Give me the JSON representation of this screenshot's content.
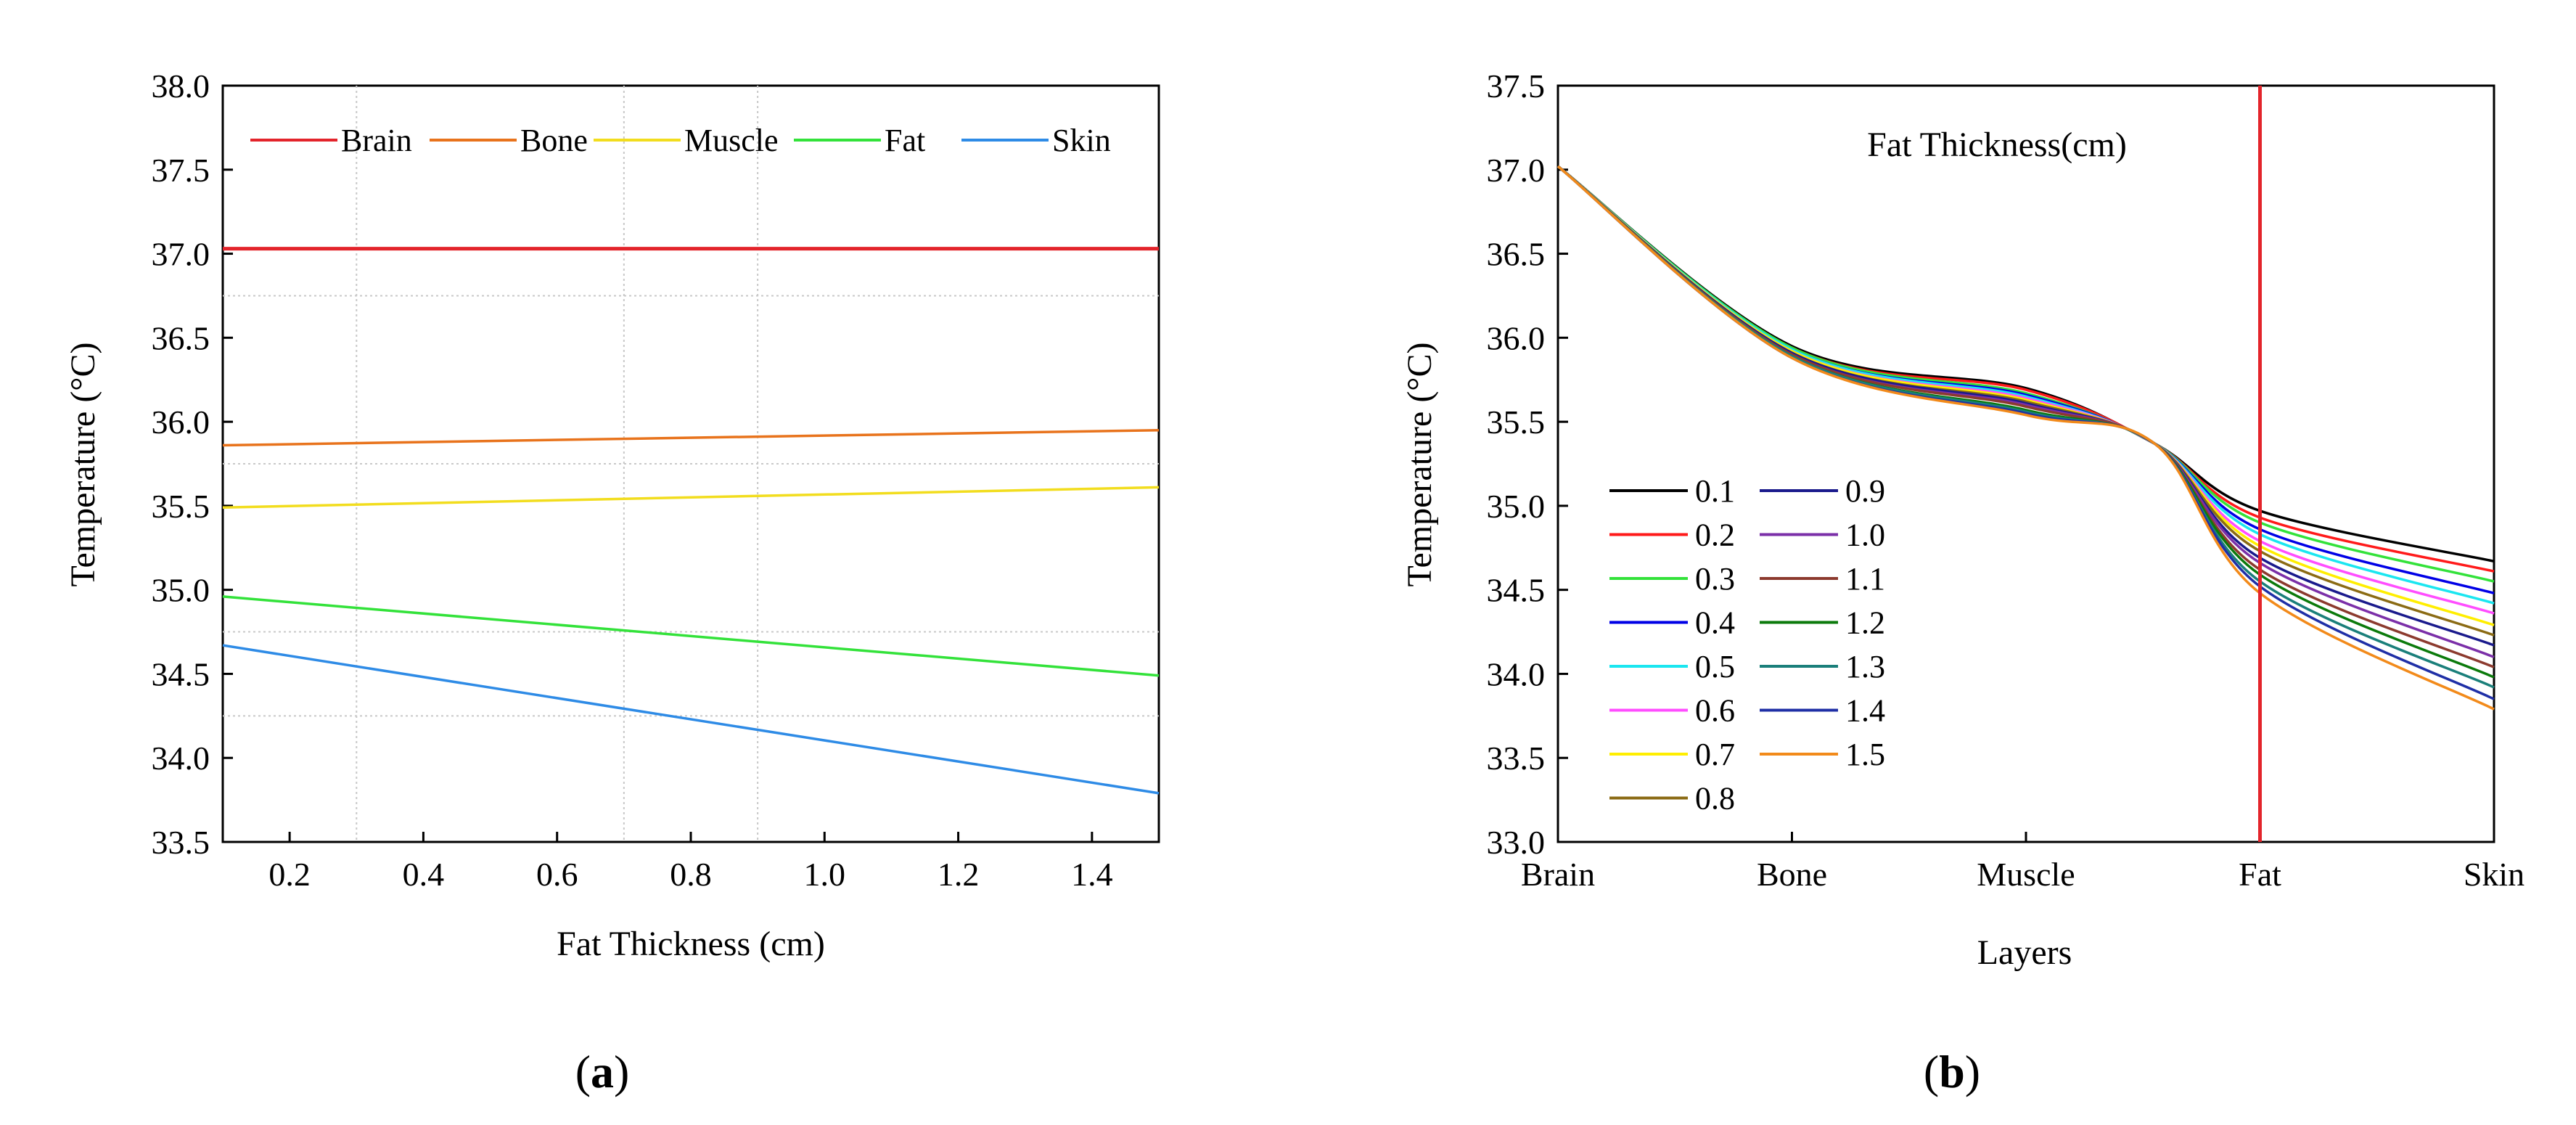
{
  "chart_data": [
    {
      "panel_label": "a",
      "type": "line",
      "title": "",
      "xlabel": "Fat Thickness (cm)",
      "ylabel": "Temperature (°C)",
      "xlim": [
        0.1,
        1.5
      ],
      "ylim": [
        33.5,
        38.0
      ],
      "xticks": [
        0.2,
        0.4,
        0.6,
        0.8,
        1.0,
        1.2,
        1.4
      ],
      "xtick_labels": [
        "0.2",
        "0.4",
        "0.6",
        "0.8",
        "1.0",
        "1.2",
        "1.4"
      ],
      "yticks": [
        33.5,
        34.0,
        34.5,
        35.0,
        35.5,
        36.0,
        36.5,
        37.0,
        37.5,
        38.0
      ],
      "ytick_labels": [
        "33.5",
        "34.0",
        "34.5",
        "35.0",
        "35.5",
        "36.0",
        "36.5",
        "37.0",
        "37.5",
        "38.0"
      ],
      "grid": true,
      "legend_position": "top",
      "series": [
        {
          "name": "Brain",
          "color": "#e3242b",
          "x": [
            0.1,
            1.5
          ],
          "y": [
            37.03,
            37.03
          ]
        },
        {
          "name": "Bone",
          "color": "#e8731c",
          "x": [
            0.1,
            1.5
          ],
          "y": [
            35.86,
            35.95
          ]
        },
        {
          "name": "Muscle",
          "color": "#f2dd1e",
          "x": [
            0.1,
            1.5
          ],
          "y": [
            35.49,
            35.61
          ]
        },
        {
          "name": "Fat",
          "color": "#33e23a",
          "x": [
            0.1,
            1.5
          ],
          "y": [
            34.96,
            34.49
          ]
        },
        {
          "name": "Skin",
          "color": "#2e8be6",
          "x": [
            0.1,
            1.5
          ],
          "y": [
            34.67,
            33.79
          ]
        }
      ]
    },
    {
      "panel_label": "b",
      "type": "line",
      "title": "",
      "annotation": "Fat Thickness(cm)",
      "xlabel": "Layers",
      "ylabel": "Temperature (°C)",
      "categories": [
        "Brain",
        "Bone",
        "Muscle",
        "Fat",
        "Skin"
      ],
      "ylim": [
        33.0,
        37.5
      ],
      "yticks": [
        33.0,
        33.5,
        34.0,
        34.5,
        35.0,
        35.5,
        36.0,
        36.5,
        37.0,
        37.5
      ],
      "ytick_labels": [
        "33.0",
        "33.5",
        "34.0",
        "34.5",
        "35.0",
        "35.5",
        "36.0",
        "36.5",
        "37.0",
        "37.5"
      ],
      "grid": false,
      "marker_line": {
        "category": "Fat",
        "color": "#e3242b"
      },
      "legend_position": "lower-left",
      "series": [
        {
          "name": "0.1",
          "color": "#000000",
          "values": [
            37.02,
            35.95,
            35.7,
            34.97,
            34.67
          ]
        },
        {
          "name": "0.2",
          "color": "#ff1a1a",
          "values": [
            37.02,
            35.94,
            35.69,
            34.93,
            34.61
          ]
        },
        {
          "name": "0.3",
          "color": "#33e23a",
          "values": [
            37.02,
            35.94,
            35.67,
            34.9,
            34.55
          ]
        },
        {
          "name": "0.4",
          "color": "#0000e6",
          "values": [
            37.02,
            35.93,
            35.66,
            34.86,
            34.48
          ]
        },
        {
          "name": "0.5",
          "color": "#1ae6f0",
          "values": [
            37.02,
            35.93,
            35.65,
            34.83,
            34.42
          ]
        },
        {
          "name": "0.6",
          "color": "#ff4dff",
          "values": [
            37.02,
            35.92,
            35.64,
            34.79,
            34.36
          ]
        },
        {
          "name": "0.7",
          "color": "#ffee00",
          "values": [
            37.02,
            35.92,
            35.63,
            34.76,
            34.29
          ]
        },
        {
          "name": "0.8",
          "color": "#8b6b14",
          "values": [
            37.02,
            35.91,
            35.62,
            34.73,
            34.23
          ]
        },
        {
          "name": "0.9",
          "color": "#1a1a8c",
          "values": [
            37.02,
            35.91,
            35.61,
            34.69,
            34.17
          ]
        },
        {
          "name": "1.0",
          "color": "#7b2fa8",
          "values": [
            37.02,
            35.9,
            35.6,
            34.66,
            34.1
          ]
        },
        {
          "name": "1.1",
          "color": "#8c3a2e",
          "values": [
            37.02,
            35.9,
            35.59,
            34.62,
            34.04
          ]
        },
        {
          "name": "1.2",
          "color": "#0b7a0b",
          "values": [
            37.02,
            35.89,
            35.57,
            34.59,
            33.98
          ]
        },
        {
          "name": "1.3",
          "color": "#1a7f7a",
          "values": [
            37.02,
            35.89,
            35.56,
            34.55,
            33.92
          ]
        },
        {
          "name": "1.4",
          "color": "#1f2fa6",
          "values": [
            37.02,
            35.88,
            35.55,
            34.52,
            33.85
          ]
        },
        {
          "name": "1.5",
          "color": "#f28a1a",
          "values": [
            37.02,
            35.88,
            35.54,
            34.48,
            33.79
          ]
        }
      ]
    }
  ]
}
